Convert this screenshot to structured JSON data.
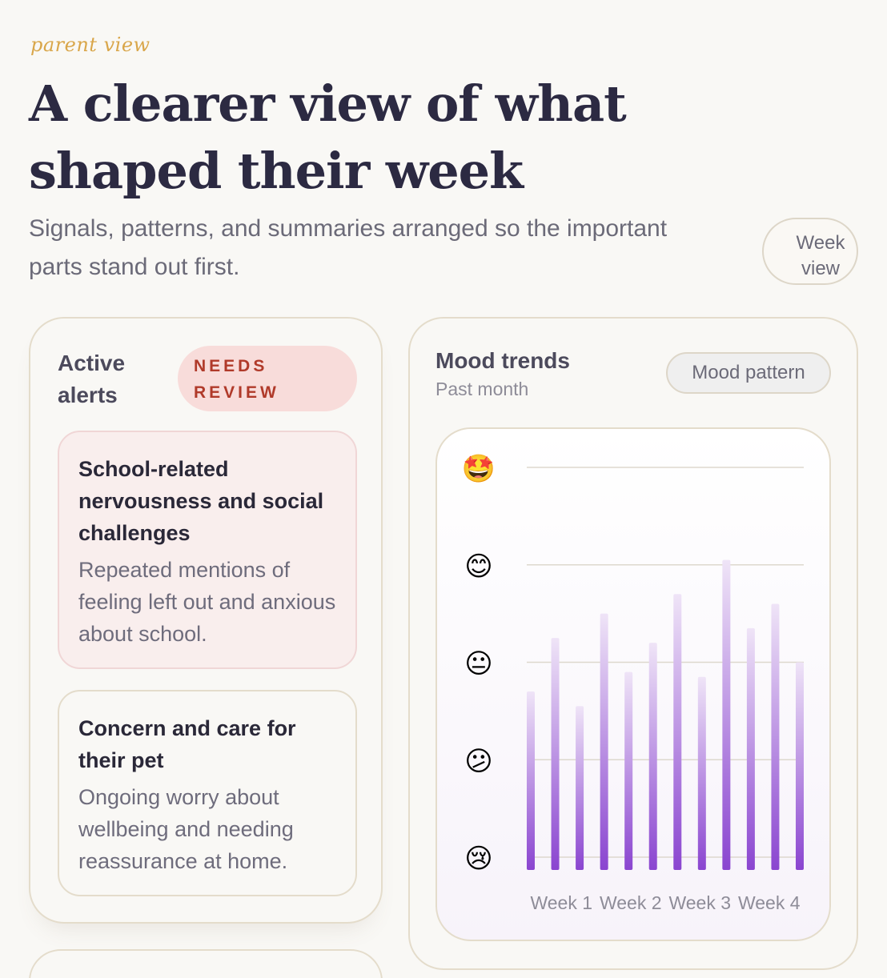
{
  "header": {
    "eyebrow": "parent view",
    "title": "A clearer view of what shaped their week",
    "subtitle": "Signals, patterns, and summaries arranged so the important parts stand out first.",
    "week_toggle": "Week view"
  },
  "alerts": {
    "title": "Active alerts",
    "badge": "NEEDS REVIEW",
    "items": [
      {
        "title": "School-related nervousness and social challenges",
        "body": "Repeated mentions of feeling left out and anxious about school.",
        "severity": "high"
      },
      {
        "title": "Concern and care for their pet",
        "body": "Ongoing worry about wellbeing and needing reassurance at home.",
        "severity": "normal"
      }
    ]
  },
  "mood": {
    "title": "Mood trends",
    "subtitle": "Past month",
    "pattern_button": "Mood pattern"
  },
  "chart_data": {
    "type": "bar",
    "x_labels": [
      "Week 1",
      "Week 2",
      "Week 3",
      "Week 4"
    ],
    "y_levels": [
      {
        "emoji": "🤩",
        "value": 5
      },
      {
        "emoji": "😊",
        "value": 4
      },
      {
        "emoji": "😐",
        "value": 3
      },
      {
        "emoji": "😕",
        "value": 2
      },
      {
        "emoji": "😢",
        "value": 1
      }
    ],
    "ylim": [
      1,
      5
    ],
    "values": [
      2.7,
      3.25,
      2.55,
      3.5,
      2.9,
      3.2,
      3.7,
      2.85,
      4.05,
      3.35,
      3.6,
      3.0
    ],
    "colors": {
      "bar_top": "#efe4f7",
      "bar_bottom": "#8a45d0",
      "grid": "#ddd8ce"
    }
  }
}
